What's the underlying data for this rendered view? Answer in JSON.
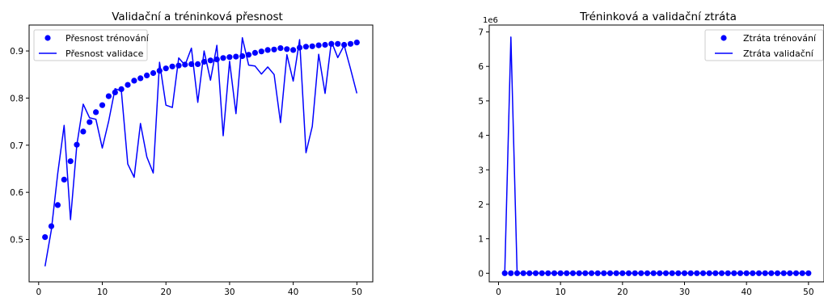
{
  "colors": {
    "series": "#0000ff",
    "axis": "#000000",
    "legend_border": "#cccccc"
  },
  "chart_data": [
    {
      "type": "line",
      "title": "Validační a tréninková přesnost",
      "xlabel": "",
      "ylabel": "",
      "xlim": [
        -1.5,
        52.5
      ],
      "ylim": [
        0.41,
        0.955
      ],
      "xticks": [
        0,
        10,
        20,
        30,
        40,
        50
      ],
      "yticks": [
        0.5,
        0.6,
        0.7,
        0.8,
        0.9
      ],
      "ytick_labels": [
        "0.5",
        "0.6",
        "0.7",
        "0.8",
        "0.9"
      ],
      "grid": false,
      "legend": "top-left",
      "x": [
        1,
        2,
        3,
        4,
        5,
        6,
        7,
        8,
        9,
        10,
        11,
        12,
        13,
        14,
        15,
        16,
        17,
        18,
        19,
        20,
        21,
        22,
        23,
        24,
        25,
        26,
        27,
        28,
        29,
        30,
        31,
        32,
        33,
        34,
        35,
        36,
        37,
        38,
        39,
        40,
        41,
        42,
        43,
        44,
        45,
        46,
        47,
        48,
        49,
        50
      ],
      "series": [
        {
          "name": "Přesnost trénování",
          "style": "markers",
          "values": [
            0.505,
            0.528,
            0.573,
            0.627,
            0.666,
            0.701,
            0.729,
            0.749,
            0.77,
            0.785,
            0.804,
            0.812,
            0.819,
            0.828,
            0.837,
            0.842,
            0.848,
            0.853,
            0.858,
            0.863,
            0.867,
            0.869,
            0.871,
            0.872,
            0.872,
            0.877,
            0.88,
            0.882,
            0.885,
            0.887,
            0.888,
            0.889,
            0.892,
            0.896,
            0.899,
            0.902,
            0.903,
            0.906,
            0.904,
            0.902,
            0.907,
            0.909,
            0.91,
            0.912,
            0.913,
            0.915,
            0.915,
            0.913,
            0.915,
            0.918
          ]
        },
        {
          "name": "Přesnost validace",
          "style": "line",
          "values": [
            0.443,
            0.52,
            0.64,
            0.742,
            0.542,
            0.7,
            0.787,
            0.758,
            0.755,
            0.694,
            0.751,
            0.82,
            0.815,
            0.66,
            0.632,
            0.746,
            0.675,
            0.641,
            0.876,
            0.785,
            0.78,
            0.885,
            0.87,
            0.906,
            0.791,
            0.9,
            0.838,
            0.912,
            0.72,
            0.878,
            0.767,
            0.928,
            0.87,
            0.868,
            0.851,
            0.866,
            0.85,
            0.748,
            0.892,
            0.836,
            0.924,
            0.684,
            0.74,
            0.893,
            0.81,
            0.92,
            0.886,
            0.912,
            0.862,
            0.81
          ]
        }
      ]
    },
    {
      "type": "line",
      "title": "Tréninková a validační ztráta",
      "xlabel": "",
      "ylabel": "",
      "offset_label": "1e6",
      "xlim": [
        -1.5,
        52.5
      ],
      "ylim": [
        -0.25,
        7.2
      ],
      "xticks": [
        0,
        10,
        20,
        30,
        40,
        50
      ],
      "yticks": [
        0,
        1,
        2,
        3,
        4,
        5,
        6,
        7
      ],
      "ytick_labels": [
        "0",
        "1",
        "2",
        "3",
        "4",
        "5",
        "6",
        "7"
      ],
      "grid": false,
      "legend": "top-right",
      "x": [
        1,
        2,
        3,
        4,
        5,
        6,
        7,
        8,
        9,
        10,
        11,
        12,
        13,
        14,
        15,
        16,
        17,
        18,
        19,
        20,
        21,
        22,
        23,
        24,
        25,
        26,
        27,
        28,
        29,
        30,
        31,
        32,
        33,
        34,
        35,
        36,
        37,
        38,
        39,
        40,
        41,
        42,
        43,
        44,
        45,
        46,
        47,
        48,
        49,
        50
      ],
      "series": [
        {
          "name": "Ztráta trénování",
          "style": "markers",
          "values": [
            0,
            0,
            0,
            0,
            0,
            0,
            0,
            0,
            0,
            0,
            0,
            0,
            0,
            0,
            0,
            0,
            0,
            0,
            0,
            0,
            0,
            0,
            0,
            0,
            0,
            0,
            0,
            0,
            0,
            0,
            0,
            0,
            0,
            0,
            0,
            0,
            0,
            0,
            0,
            0,
            0,
            0,
            0,
            0,
            0,
            0,
            0,
            0,
            0,
            0
          ]
        },
        {
          "name": "Ztráta validační",
          "style": "line",
          "values": [
            0,
            6.85,
            0,
            0,
            0,
            0,
            0,
            0,
            0,
            0,
            0,
            0,
            0,
            0,
            0,
            0,
            0,
            0,
            0,
            0,
            0,
            0,
            0,
            0,
            0,
            0,
            0,
            0,
            0,
            0,
            0,
            0,
            0,
            0,
            0,
            0,
            0,
            0,
            0,
            0,
            0,
            0,
            0,
            0,
            0,
            0,
            0,
            0,
            0,
            0
          ]
        }
      ]
    }
  ]
}
